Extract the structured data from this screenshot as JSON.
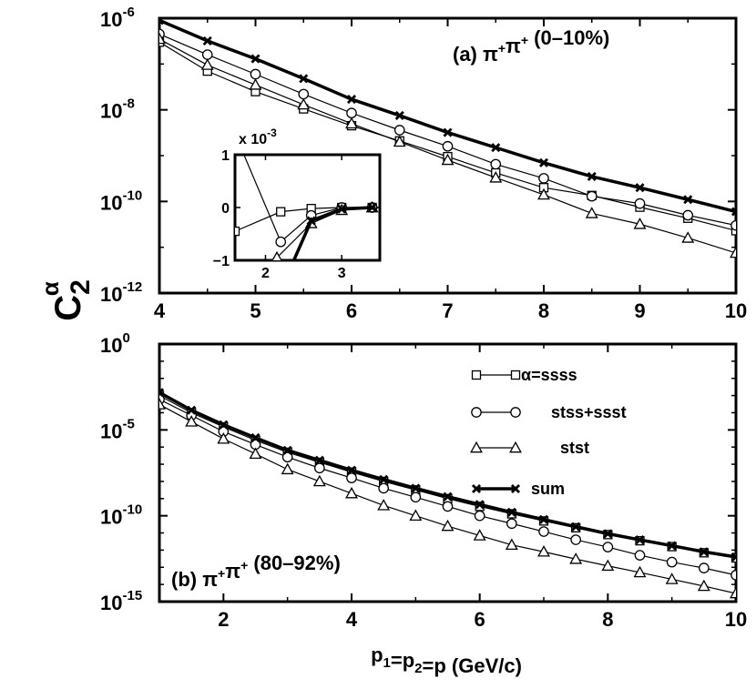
{
  "chart_data": [
    {
      "type": "line",
      "panel": "top",
      "annotation": "(a) π⁺π⁺ (0–10%)",
      "ylabel": "C₂^α",
      "xlim": [
        4,
        10
      ],
      "ylim": [
        1e-12,
        1e-06
      ],
      "yscale": "log",
      "xticks": [
        4,
        5,
        6,
        7,
        8,
        9,
        10
      ],
      "yticks": [
        {
          "value": 1e-06,
          "label": "10",
          "exp": "-6"
        },
        {
          "value": 1e-08,
          "label": "10",
          "exp": "-8"
        },
        {
          "value": 1e-10,
          "label": "10",
          "exp": "-10"
        },
        {
          "value": 1e-12,
          "label": "10",
          "exp": "-12"
        }
      ],
      "series": [
        {
          "name": "α=ssss",
          "marker": "square",
          "x": [
            4,
            4.5,
            5,
            5.5,
            6,
            6.5,
            7,
            7.5,
            8,
            8.5,
            9,
            9.5,
            10
          ],
          "y": [
            3e-07,
            7e-08,
            2.5e-08,
            1.05e-08,
            4.5e-09,
            2.1e-09,
            9.5e-10,
            4.2e-10,
            2e-10,
            1.35e-10,
            7.5e-11,
            4.3e-11,
            2.3e-11
          ]
        },
        {
          "name": "stss+ssst",
          "marker": "circle",
          "x": [
            4,
            4.5,
            5,
            5.5,
            6,
            6.5,
            7,
            7.5,
            8,
            8.5,
            9,
            9.5,
            10
          ],
          "y": [
            4.5e-07,
            1.6e-07,
            6e-08,
            2.2e-08,
            8.5e-09,
            3.6e-09,
            1.6e-09,
            6.5e-10,
            3.2e-10,
            1.3e-10,
            9e-11,
            5e-11,
            3e-11
          ]
        },
        {
          "name": "stst",
          "marker": "triangle",
          "x": [
            4,
            4.5,
            5,
            5.5,
            6,
            6.5,
            7,
            7.5,
            8,
            8.5,
            9,
            9.5,
            10
          ],
          "y": [
            3.5e-07,
            9.5e-08,
            3.5e-08,
            1.3e-08,
            5e-09,
            2e-09,
            8e-10,
            3.3e-10,
            1.4e-10,
            5.5e-11,
            3.2e-11,
            1.6e-11,
            7.5e-12
          ]
        },
        {
          "name": "sum",
          "marker": "cross",
          "x": [
            4,
            4.5,
            5,
            5.5,
            6,
            6.5,
            7,
            7.5,
            8,
            8.5,
            9,
            9.5,
            10
          ],
          "y": [
            9e-07,
            3.2e-07,
            1.3e-07,
            4.8e-08,
            1.7e-08,
            7.5e-09,
            3.2e-09,
            1.5e-09,
            7e-10,
            3.5e-10,
            2e-10,
            1.1e-10,
            6e-11
          ]
        }
      ]
    },
    {
      "type": "line",
      "panel": "inset",
      "multiplier": "x 10",
      "multiplier_exp": "-3",
      "xlim": [
        1.6,
        3.5
      ],
      "ylim": [
        -1,
        1
      ],
      "xticks": [
        2,
        3
      ],
      "yticks": [
        1,
        0,
        -1
      ],
      "series": [
        {
          "name": "α=ssss",
          "marker": "square",
          "x": [
            1.6,
            2.2,
            2.6,
            3,
            3.4
          ],
          "y": [
            -0.45,
            -0.08,
            -0.02,
            0.0,
            0.0
          ]
        },
        {
          "name": "stss+ssst",
          "marker": "circle",
          "x": [
            1.6,
            2.2,
            2.6,
            3,
            3.4
          ],
          "y": [
            1.4,
            -0.65,
            -0.15,
            0.0,
            0.0
          ]
        },
        {
          "name": "stst",
          "marker": "triangle",
          "x": [
            2.15,
            2.6,
            3,
            3.4
          ],
          "y": [
            -0.95,
            -0.3,
            -0.05,
            0.0
          ]
        },
        {
          "name": "sum",
          "marker": "cross",
          "x": [
            2.25,
            2.6,
            3,
            3.4
          ],
          "y": [
            -1.4,
            -0.25,
            -0.03,
            0.0
          ]
        }
      ]
    },
    {
      "type": "line",
      "panel": "bottom",
      "annotation": "(b) π⁺π⁺ (80–92%)",
      "xlabel": "p₁=p₂=p (GeV/c)",
      "xlim": [
        1,
        10
      ],
      "ylim": [
        1e-15,
        1
      ],
      "yscale": "log",
      "xticks": [
        2,
        4,
        6,
        8,
        10
      ],
      "yticks": [
        {
          "value": 1,
          "label": "10",
          "exp": "0"
        },
        {
          "value": 1e-05,
          "label": "10",
          "exp": "-5"
        },
        {
          "value": 1e-10,
          "label": "10",
          "exp": "-10"
        },
        {
          "value": 1e-15,
          "label": "10",
          "exp": "-15"
        }
      ],
      "legend": [
        "α=ssss",
        "stss+ssst",
        "stst",
        "sum"
      ],
      "legend_position": "top-right",
      "series": [
        {
          "name": "α=ssss",
          "marker": "square",
          "x": [
            1,
            1.5,
            2,
            2.5,
            3,
            3.5,
            4,
            4.5,
            5,
            5.5,
            6,
            6.5,
            7,
            7.5,
            8,
            8.5,
            9,
            9.5,
            10
          ],
          "y": [
            0.001,
            0.0001,
            1.5e-05,
            2.5e-06,
            5e-07,
            1.3e-07,
            3.5e-08,
            1e-08,
            3.2e-09,
            1e-09,
            3.5e-10,
            1.3e-10,
            5e-11,
            2e-11,
            8e-12,
            3.5e-12,
            1.6e-12,
            7e-13,
            3.5e-13
          ]
        },
        {
          "name": "stss+ssst",
          "marker": "circle",
          "x": [
            1,
            1.5,
            2,
            2.5,
            3,
            3.5,
            4,
            4.5,
            5,
            5.5,
            6,
            6.5,
            7,
            7.5,
            8,
            8.5,
            9,
            9.5,
            10
          ],
          "y": [
            0.0006,
            7e-05,
            8e-06,
            1.4e-06,
            2.6e-07,
            6e-08,
            1.6e-08,
            4e-09,
            1.2e-09,
            3.5e-10,
            1e-10,
            3.5e-11,
            1.2e-11,
            4e-12,
            1.5e-12,
            5e-13,
            2e-13,
            9e-14,
            3.5e-14
          ]
        },
        {
          "name": "stst",
          "marker": "triangle",
          "x": [
            1,
            1.5,
            2,
            2.5,
            3,
            3.5,
            4,
            4.5,
            5,
            5.5,
            6,
            6.5,
            7,
            7.5,
            8,
            8.5,
            9,
            9.5,
            10
          ],
          "y": [
            0.0003,
            3e-05,
            3e-06,
            4e-07,
            5e-08,
            1e-08,
            2e-09,
            4e-10,
            1e-10,
            2.5e-11,
            7e-12,
            2e-12,
            8e-13,
            3e-13,
            1.2e-13,
            5e-14,
            2e-14,
            8e-15,
            3e-15
          ]
        },
        {
          "name": "sum",
          "marker": "cross",
          "x": [
            1,
            1.5,
            2,
            2.5,
            3,
            3.5,
            4,
            4.5,
            5,
            5.5,
            6,
            6.5,
            7,
            7.5,
            8,
            8.5,
            9,
            9.5,
            10
          ],
          "y": [
            0.0015,
            0.00014,
            2e-05,
            3.5e-06,
            6.5e-07,
            1.7e-07,
            4.5e-08,
            1.3e-08,
            4e-09,
            1.3e-09,
            4.5e-10,
            1.6e-10,
            6e-11,
            2.3e-11,
            9e-12,
            4e-12,
            1.8e-12,
            8e-13,
            4e-13
          ]
        }
      ]
    }
  ]
}
